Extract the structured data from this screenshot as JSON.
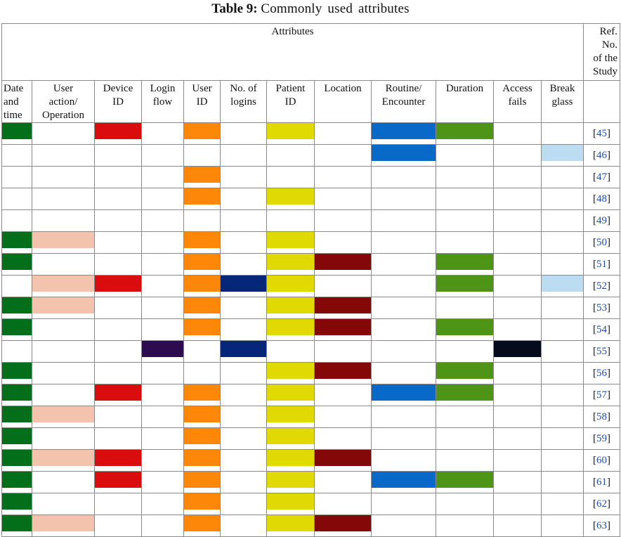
{
  "caption": {
    "label": "Table 9:",
    "text": "Commonly used attributes"
  },
  "header": {
    "group_title": "Attributes",
    "ref_title": [
      "Ref.",
      "No.",
      "of the",
      "Study"
    ]
  },
  "columns": [
    {
      "key": "datetime",
      "lines": [
        "Date",
        "and",
        "time"
      ],
      "color": "#036F1B"
    },
    {
      "key": "user_action",
      "lines": [
        "User",
        "action/",
        "Operation"
      ],
      "color": "#F4C3AE"
    },
    {
      "key": "device_id",
      "lines": [
        "Device",
        "ID"
      ],
      "color": "#D90D0D"
    },
    {
      "key": "login_flow",
      "lines": [
        "Login",
        "flow"
      ],
      "color": "#2C0B4F"
    },
    {
      "key": "user_id",
      "lines": [
        "User",
        "ID"
      ],
      "color": "#FD8708"
    },
    {
      "key": "logins",
      "lines": [
        "No. of",
        "logins"
      ],
      "color": "#06267A"
    },
    {
      "key": "patient_id",
      "lines": [
        "Patient",
        "ID"
      ],
      "color": "#E1D904"
    },
    {
      "key": "location",
      "lines": [
        "Location"
      ],
      "color": "#840808"
    },
    {
      "key": "routine",
      "lines": [
        "Routine/",
        "Encounter"
      ],
      "color": "#0969C8"
    },
    {
      "key": "duration",
      "lines": [
        "Duration"
      ],
      "color": "#4E9517"
    },
    {
      "key": "access_fails",
      "lines": [
        "Access",
        "fails"
      ],
      "color": "#050A1C"
    },
    {
      "key": "break_glass",
      "lines": [
        "Break",
        "glass"
      ],
      "color": "#BCDCF2"
    }
  ],
  "rows": [
    {
      "ref": "45",
      "attrs": [
        "datetime",
        "device_id",
        "user_id",
        "patient_id",
        "routine",
        "duration"
      ]
    },
    {
      "ref": "46",
      "attrs": [
        "routine",
        "break_glass"
      ]
    },
    {
      "ref": "47",
      "attrs": [
        "user_id"
      ]
    },
    {
      "ref": "48",
      "attrs": [
        "user_id",
        "patient_id"
      ]
    },
    {
      "ref": "49",
      "attrs": []
    },
    {
      "ref": "50",
      "attrs": [
        "datetime",
        "user_action",
        "user_id",
        "patient_id"
      ]
    },
    {
      "ref": "51",
      "attrs": [
        "datetime",
        "user_id",
        "patient_id",
        "location",
        "duration"
      ]
    },
    {
      "ref": "52",
      "attrs": [
        "user_action",
        "device_id",
        "user_id",
        "logins",
        "patient_id",
        "duration",
        "break_glass"
      ]
    },
    {
      "ref": "53",
      "attrs": [
        "datetime",
        "user_action",
        "user_id",
        "patient_id",
        "location"
      ]
    },
    {
      "ref": "54",
      "attrs": [
        "datetime",
        "user_id",
        "patient_id",
        "location",
        "duration"
      ]
    },
    {
      "ref": "55",
      "attrs": [
        "login_flow",
        "logins",
        "access_fails"
      ]
    },
    {
      "ref": "56",
      "attrs": [
        "datetime",
        "patient_id",
        "location",
        "duration"
      ]
    },
    {
      "ref": "57",
      "attrs": [
        "datetime",
        "device_id",
        "user_id",
        "patient_id",
        "routine",
        "duration"
      ]
    },
    {
      "ref": "58",
      "attrs": [
        "datetime",
        "user_action",
        "user_id",
        "patient_id"
      ]
    },
    {
      "ref": "59",
      "attrs": [
        "datetime",
        "user_id",
        "patient_id"
      ]
    },
    {
      "ref": "60",
      "attrs": [
        "datetime",
        "user_action",
        "device_id",
        "user_id",
        "patient_id",
        "location"
      ]
    },
    {
      "ref": "61",
      "attrs": [
        "datetime",
        "device_id",
        "user_id",
        "patient_id",
        "routine",
        "duration"
      ]
    },
    {
      "ref": "62",
      "attrs": [
        "datetime",
        "user_id",
        "patient_id"
      ]
    },
    {
      "ref": "63",
      "attrs": [
        "datetime",
        "user_action",
        "user_id",
        "patient_id",
        "location"
      ]
    }
  ]
}
